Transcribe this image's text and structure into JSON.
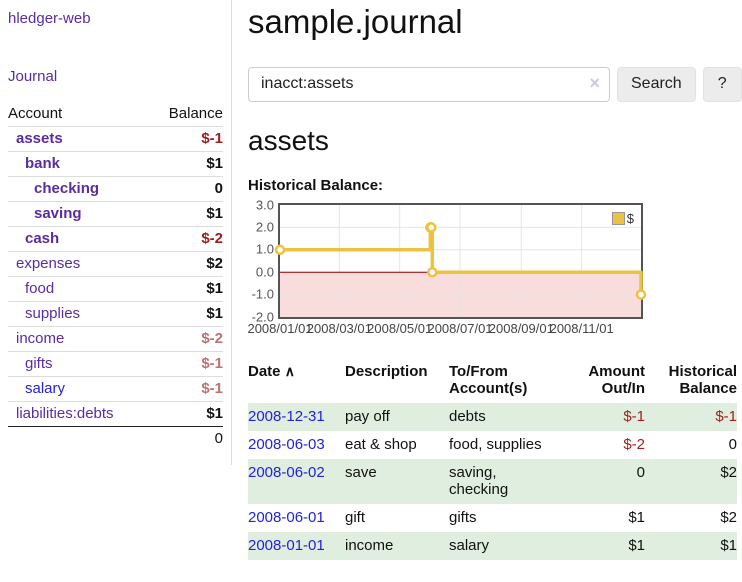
{
  "app": {
    "title": "hledger-web"
  },
  "sidebar": {
    "journal_link": "Journal",
    "accounts": {
      "header": {
        "account": "Account",
        "balance": "Balance"
      },
      "rows": [
        {
          "name": "assets",
          "balance": "$-1"
        },
        {
          "name": "bank",
          "balance": "$1"
        },
        {
          "name": "checking",
          "balance": "0"
        },
        {
          "name": "saving",
          "balance": "$1"
        },
        {
          "name": "cash",
          "balance": "$-2"
        },
        {
          "name": "expenses",
          "balance": "$2"
        },
        {
          "name": "food",
          "balance": "$1"
        },
        {
          "name": "supplies",
          "balance": "$1"
        },
        {
          "name": "income",
          "balance": "$-2"
        },
        {
          "name": "gifts",
          "balance": "$-1"
        },
        {
          "name": "salary",
          "balance": "$-1"
        },
        {
          "name": "liabilities:debts",
          "balance": "$1"
        }
      ],
      "total": "0"
    }
  },
  "header": {
    "title": "sample.journal"
  },
  "search": {
    "value": "inacct:assets",
    "clear_icon": "×",
    "button": "Search",
    "help_button": "?"
  },
  "account_page": {
    "heading": "assets",
    "chart_title": "Historical Balance:"
  },
  "chart_data": {
    "type": "line",
    "step": true,
    "title": "Historical Balance:",
    "series": [
      {
        "name": "$",
        "color": "#EDC240",
        "points": [
          [
            "2008-01-01",
            1
          ],
          [
            "2008-06-01",
            2
          ],
          [
            "2008-06-02",
            2
          ],
          [
            "2008-06-03",
            0
          ],
          [
            "2008-12-31",
            -1
          ]
        ]
      }
    ],
    "xlim": [
      "2008-01-01",
      "2008-12-31"
    ],
    "ylim": [
      -2,
      3
    ],
    "x_ticks": [
      "2008/01/01",
      "2008/03/01",
      "2008/05/01",
      "2008/07/01",
      "2008/09/01",
      "2008/11/01"
    ],
    "y_ticks": [
      "3.0",
      "2.0",
      "1.0",
      "0.0",
      "-1.0",
      "-2.0"
    ],
    "legend_position": "top-right",
    "grid_on": true,
    "grid_color": "#e5e5e5",
    "negative_region_color": "#f9dcdc",
    "zero_line_color": "#8b0000",
    "marker": "hollow-circle"
  },
  "register": {
    "headers": {
      "date": "Date",
      "sort_icon": "∧",
      "description": "Description",
      "accounts": "To/From Account(s)",
      "amount": "Amount Out/In",
      "balance": "Historical Balance"
    },
    "rows": [
      {
        "date": "2008-12-31",
        "description": "pay off",
        "accounts": "debts",
        "amount": "$-1",
        "balance": "$-1"
      },
      {
        "date": "2008-06-03",
        "description": "eat & shop",
        "accounts": "food, supplies",
        "amount": "$-2",
        "balance": "0"
      },
      {
        "date": "2008-06-02",
        "description": "save",
        "accounts": "saving, checking",
        "amount": "0",
        "balance": "$2"
      },
      {
        "date": "2008-06-01",
        "description": "gift",
        "accounts": "gifts",
        "amount": "$1",
        "balance": "$2"
      },
      {
        "date": "2008-01-01",
        "description": "income",
        "accounts": "salary",
        "amount": "$1",
        "balance": "$1"
      }
    ]
  }
}
